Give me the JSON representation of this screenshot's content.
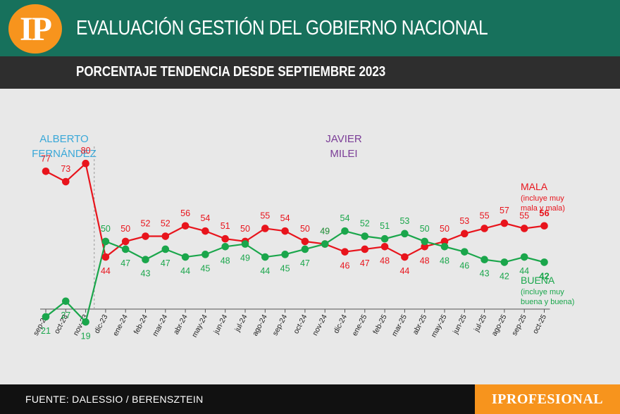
{
  "header": {
    "logo_text": "IP",
    "title": "EVALUACIÓN GESTIÓN DEL GOBIERNO NACIONAL",
    "subtitle": "PORCENTAJE TENDENCIA DESDE SEPTIEMBRE 2023"
  },
  "footer": {
    "source": "FUENTE: DALESSIO / BERENSZTEIN",
    "brand": "IPROFESIONAL"
  },
  "colors": {
    "header_green": "#17715c",
    "header_dark": "#2e2e2e",
    "accent_orange": "#f7941d",
    "mala_red": "#e8141c",
    "buena_green": "#1aa64b",
    "fernandez_blue": "#3aa8d8",
    "milei_purple": "#7b3d97"
  },
  "chart_data": {
    "type": "line",
    "categories": [
      "sep-23",
      "oct-23",
      "nov-23",
      "dic-23",
      "ene-24",
      "feb-24",
      "mar-24",
      "abr-24",
      "may-24",
      "jun-24",
      "jul-24",
      "ago-24",
      "sep-24",
      "oct-24",
      "nov-24",
      "dic-24",
      "ene-25",
      "feb-25",
      "mar-25",
      "abr-25",
      "may-25",
      "jun-25",
      "jul-25",
      "ago-25",
      "sep-25",
      "oct-25"
    ],
    "series": [
      {
        "name": "MALA",
        "note": "(incluye muy mala y mala)",
        "color": "#e8141c",
        "values": [
          77,
          73,
          80,
          44,
          50,
          52,
          52,
          56,
          54,
          51,
          50,
          55,
          54,
          50,
          49,
          46,
          47,
          48,
          44,
          48,
          50,
          53,
          55,
          57,
          55,
          56
        ]
      },
      {
        "name": "BUENA",
        "note": "(incluye muy buena y buena)",
        "color": "#1aa64b",
        "values": [
          21,
          27,
          19,
          50,
          47,
          43,
          47,
          44,
          45,
          48,
          49,
          44,
          45,
          47,
          49,
          54,
          52,
          51,
          53,
          50,
          48,
          46,
          43,
          42,
          44,
          42
        ]
      }
    ],
    "annotations": [
      {
        "text_lines": [
          "ALBERTO",
          "FERNÁNDEZ"
        ],
        "color": "#3aa8d8"
      },
      {
        "text_lines": [
          "JAVIER",
          "MILEI"
        ],
        "color": "#7b3d97"
      }
    ],
    "period_divider_after": "nov-23",
    "legend": "right"
  }
}
